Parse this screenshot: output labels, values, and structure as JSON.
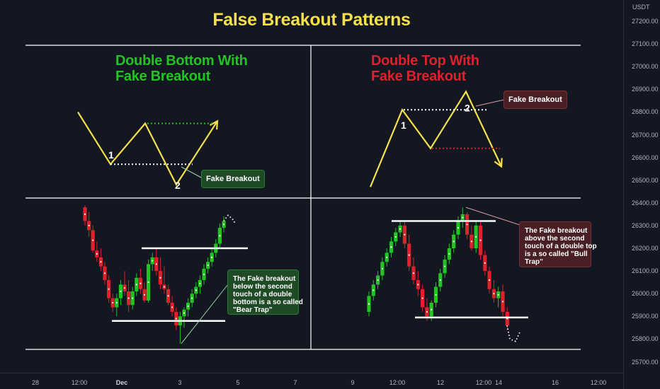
{
  "title": "False Breakout Patterns",
  "panels": {
    "double_bottom": {
      "heading": [
        "Double Bottom With",
        "Fake Breakout"
      ],
      "heading_color": "#22c322",
      "labels": [
        "1",
        "2"
      ],
      "callout": "Fake Breakout",
      "callout_bg": "#1f4a26"
    },
    "double_top": {
      "heading": [
        "Double Top With",
        "Fake Breakout"
      ],
      "heading_color": "#e0202a",
      "labels": [
        "1",
        "2"
      ],
      "callout": "Fake Breakout",
      "callout_bg": "#4a1f24"
    },
    "bear_trap": {
      "callout": [
        "The Fake breakout",
        "below the second",
        "touch of a double",
        "bottom is a so called",
        "\"Bear Trap\""
      ],
      "callout_bg": "#1f4a26"
    },
    "bull_trap": {
      "callout": [
        "The Fake breakout",
        "above the second",
        "touch of a double top",
        "is a so called \"Bull",
        "Trap\""
      ],
      "callout_bg": "#4a1f24"
    }
  },
  "colors": {
    "background": "#131722",
    "bullish": "#22c322",
    "bearish": "#e0202a",
    "accent_line": "#f5e04b",
    "grid_line": "#ffffff"
  },
  "chart_data": {
    "type": "candlestick",
    "price_axis": {
      "currency": "USDT",
      "ticks": [
        "27200.00",
        "27100.00",
        "27000.00",
        "26900.00",
        "26800.00",
        "26700.00",
        "26600.00",
        "26500.00",
        "26400.00",
        "26300.00",
        "26200.00",
        "26100.00",
        "26000.00",
        "25900.00",
        "25800.00",
        "25700.00"
      ]
    },
    "time_axis": {
      "ticks": [
        {
          "label": "28",
          "bold": false
        },
        {
          "label": "12:00",
          "bold": false
        },
        {
          "label": "Dec",
          "bold": true
        },
        {
          "label": "3",
          "bold": false
        },
        {
          "label": "5",
          "bold": false
        },
        {
          "label": "7",
          "bold": false
        },
        {
          "label": "9",
          "bold": false
        },
        {
          "label": "12:00",
          "bold": false
        },
        {
          "label": "12",
          "bold": false
        },
        {
          "label": "12:00",
          "bold": false
        },
        {
          "label": "14",
          "bold": false
        },
        {
          "label": "16",
          "bold": false
        },
        {
          "label": "12:00",
          "bold": false
        }
      ]
    },
    "schematic_double_bottom": [
      26800,
      26570,
      26750,
      26480,
      26760
    ],
    "schematic_double_top": [
      26470,
      26810,
      26640,
      26890,
      26560
    ],
    "candles_double_bottom": [
      [
        26380,
        26390,
        26300,
        26320
      ],
      [
        26320,
        26360,
        26250,
        26280
      ],
      [
        26280,
        26300,
        26180,
        26190
      ],
      [
        26190,
        26230,
        26140,
        26160
      ],
      [
        26160,
        26200,
        26100,
        26120
      ],
      [
        26120,
        26140,
        26040,
        26060
      ],
      [
        26060,
        26080,
        25960,
        25980
      ],
      [
        25980,
        26000,
        25920,
        25940
      ],
      [
        25940,
        26000,
        25900,
        25980
      ],
      [
        25980,
        26060,
        25950,
        26040
      ],
      [
        26040,
        26100,
        25990,
        26010
      ],
      [
        26010,
        26060,
        25920,
        25950
      ],
      [
        25950,
        26030,
        25930,
        26010
      ],
      [
        26010,
        26090,
        25990,
        26070
      ],
      [
        26070,
        26110,
        26000,
        26020
      ],
      [
        26020,
        26050,
        25960,
        25970
      ],
      [
        25970,
        26150,
        25960,
        26130
      ],
      [
        26130,
        26180,
        26100,
        26160
      ],
      [
        26160,
        26200,
        26080,
        26100
      ],
      [
        26100,
        26160,
        26020,
        26040
      ],
      [
        26040,
        26120,
        26000,
        26020
      ],
      [
        26020,
        26040,
        25950,
        25960
      ],
      [
        25960,
        25990,
        25900,
        25920
      ],
      [
        25920,
        25940,
        25840,
        25860
      ],
      [
        25860,
        25920,
        25780,
        25900
      ],
      [
        25900,
        25940,
        25850,
        25930
      ],
      [
        25930,
        25980,
        25900,
        25960
      ],
      [
        25960,
        26020,
        25940,
        26000
      ],
      [
        26000,
        26050,
        25980,
        26030
      ],
      [
        26030,
        26080,
        26000,
        26060
      ],
      [
        26060,
        26130,
        26040,
        26110
      ],
      [
        26110,
        26160,
        26090,
        26140
      ],
      [
        26140,
        26200,
        26120,
        26180
      ],
      [
        26180,
        26240,
        26160,
        26220
      ],
      [
        26220,
        26310,
        26200,
        26290
      ],
      [
        26290,
        26340,
        26270,
        26320
      ]
    ],
    "candles_double_top": [
      [
        25920,
        26010,
        25900,
        25990
      ],
      [
        25990,
        26060,
        25970,
        26040
      ],
      [
        26040,
        26100,
        26020,
        26080
      ],
      [
        26080,
        26160,
        26060,
        26140
      ],
      [
        26140,
        26200,
        26120,
        26180
      ],
      [
        26180,
        26250,
        26160,
        26230
      ],
      [
        26230,
        26290,
        26210,
        26270
      ],
      [
        26270,
        26320,
        26250,
        26300
      ],
      [
        26300,
        26320,
        26200,
        26220
      ],
      [
        26220,
        26260,
        26100,
        26120
      ],
      [
        26120,
        26160,
        26040,
        26060
      ],
      [
        26060,
        26100,
        25990,
        26020
      ],
      [
        26020,
        26040,
        25920,
        25940
      ],
      [
        25940,
        25980,
        25880,
        25900
      ],
      [
        25900,
        25970,
        25880,
        25960
      ],
      [
        25960,
        26050,
        25940,
        26030
      ],
      [
        26030,
        26110,
        26010,
        26090
      ],
      [
        26090,
        26170,
        26070,
        26150
      ],
      [
        26150,
        26220,
        26130,
        26200
      ],
      [
        26200,
        26280,
        26180,
        26260
      ],
      [
        26260,
        26340,
        26240,
        26320
      ],
      [
        26320,
        26380,
        26290,
        26350
      ],
      [
        26350,
        26360,
        26240,
        26260
      ],
      [
        26260,
        26300,
        26190,
        26200
      ],
      [
        26200,
        26320,
        26180,
        26300
      ],
      [
        26300,
        26320,
        26150,
        26170
      ],
      [
        26170,
        26190,
        26080,
        26100
      ],
      [
        26100,
        26120,
        26000,
        26020
      ],
      [
        26020,
        26060,
        25960,
        25980
      ],
      [
        25980,
        26030,
        25940,
        26010
      ],
      [
        26010,
        26040,
        25900,
        25920
      ],
      [
        25920,
        25940,
        25840,
        25860
      ]
    ]
  }
}
